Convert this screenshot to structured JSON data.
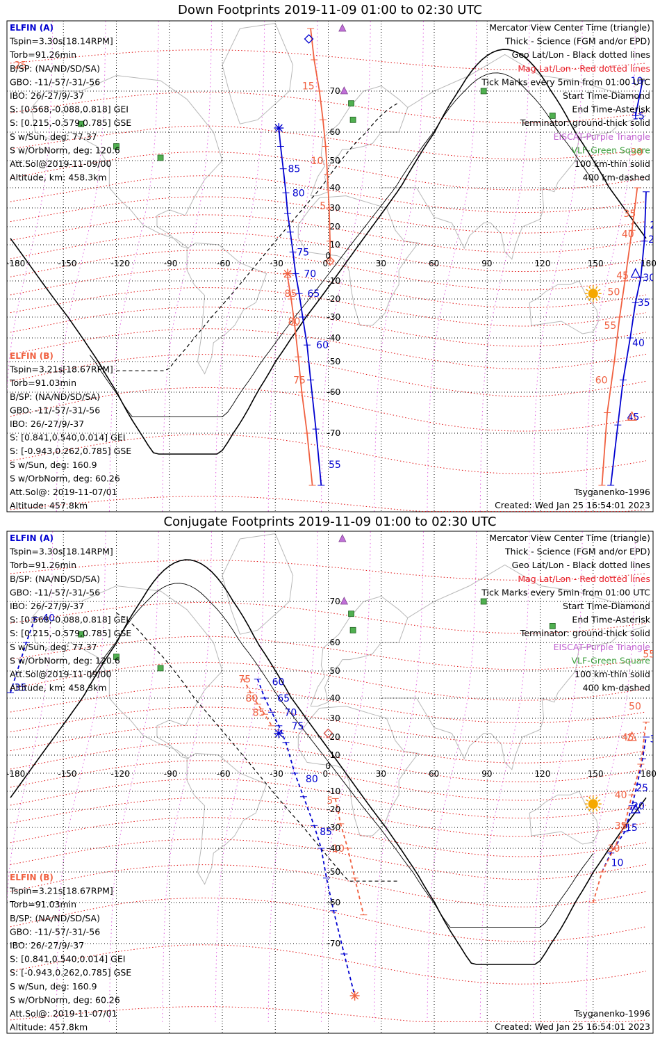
{
  "panels": [
    {
      "id": "down",
      "title": "Down Footprints 2019-11-09 01:00 to 02:30 UTC",
      "elfin_a": {
        "header": "ELFIN (A)",
        "lines": [
          "Tspin=3.30s[18.14RPM]",
          "Torb=91.26min",
          "B/SP: (NA/ND/SD/SA)",
          "GBO: -11/-57/-31/-56",
          "IBO: 26/-27/9/-37",
          "S: [0.568,-0.088,0.818] GEI",
          "S: [0.215,-0.579,0.785] GSE",
          "S w/Sun, deg: 77.37",
          "S w/OrbNorm, deg: 120.6",
          "Att.Sol@2019-11-09/00",
          "Altitude, km: 458.3km"
        ]
      },
      "elfin_b": {
        "header": "ELFIN (B)",
        "lines": [
          "Tspin=3.21s[18.67RPM]",
          "Torb=91.03min",
          "B/SP: (NA/ND/SD/SA)",
          "GBO: -11/-57/-31/-56",
          "IBO: 26/-27/9/-37",
          "S: [0.841,0.540,0.014] GEI",
          "S: [-0.943,0.262,0.785] GSE",
          "S w/Sun, deg: 160.9",
          "S w/OrbNorm, deg: 60.26",
          "Att.Sol@: 2019-11-07/01",
          "Altitude: 457.8km"
        ]
      },
      "legend": [
        {
          "text": "Mercator View Center Time (triangle)",
          "color": "#000000"
        },
        {
          "text": "Thick - Science (FGM and/or EPD)",
          "color": "#000000"
        },
        {
          "text": "Geo Lat/Lon - Black dotted lines",
          "color": "#000000"
        },
        {
          "text": "Mag Lat/Lon - Red dotted lines",
          "color": "#e8202a"
        },
        {
          "text": "Tick Marks every 5min from 01:00 UTC",
          "color": "#000000"
        },
        {
          "text": "Start Time-Diamond",
          "color": "#000000"
        },
        {
          "text": "End Time-Asterisk",
          "color": "#000000"
        },
        {
          "text": "Terminator: ground-thick solid",
          "color": "#000000"
        },
        {
          "text": "EISCAT-Purple Triangle",
          "color": "#c060d0"
        },
        {
          "text": "VLF-Green Square",
          "color": "#40a040"
        },
        {
          "text": "100 km-thin solid",
          "color": "#000000"
        },
        {
          "text": "400 km-dashed",
          "color": "#000000"
        }
      ],
      "model": "Tsyganenko-1996",
      "created": "Created: Wed Jan 25 16:54:01 2023",
      "lon_labels": [
        "-180",
        "-150",
        "-120",
        "-90",
        "-60",
        "-30",
        "0",
        "30",
        "60",
        "90",
        "120",
        "150",
        "180"
      ],
      "lat_labels": [
        "70",
        "60",
        "50",
        "40",
        "30",
        "20",
        "10",
        "0",
        "-10",
        "-20",
        "-30",
        "-40",
        "-50",
        "-60",
        "-70"
      ],
      "track_a_main": [
        {
          "lon": -28,
          "lat": 61
        },
        {
          "lon": -27,
          "lat": 55
        },
        {
          "lon": -25.5,
          "lat": 47
        },
        {
          "lon": -24,
          "lat": 37.5
        },
        {
          "lon": -23,
          "lat": 27
        },
        {
          "lon": -21.5,
          "lat": 17
        },
        {
          "lon": -20,
          "lat": 6
        },
        {
          "lon": -18.5,
          "lat": -6
        },
        {
          "lon": -16.5,
          "lat": -17
        },
        {
          "lon": -14.5,
          "lat": -30
        },
        {
          "lon": -12,
          "lat": -43
        },
        {
          "lon": -10,
          "lat": -56
        },
        {
          "lon": -7,
          "lat": -69
        },
        {
          "lon": -4,
          "lat": -80
        }
      ],
      "track_a_labels": [
        {
          "t": "85",
          "lon": -24,
          "lat": 47
        },
        {
          "t": "80",
          "lon": -21.5,
          "lat": 37.5
        },
        {
          "t": "75",
          "lon": -19,
          "lat": 6
        },
        {
          "t": "70",
          "lon": -15,
          "lat": -6
        },
        {
          "t": "65",
          "lon": -13,
          "lat": -17
        },
        {
          "t": "60",
          "lon": -8,
          "lat": -43
        },
        {
          "t": "55",
          "lon": -1,
          "lat": -76
        }
      ],
      "track_a_wrap": [
        {
          "lon": 160,
          "lat": -80
        },
        {
          "lon": 164,
          "lat": -68
        },
        {
          "lon": 167,
          "lat": -56
        },
        {
          "lon": 171,
          "lat": -40
        },
        {
          "lon": 174,
          "lat": -22
        },
        {
          "lon": 177,
          "lat": -8
        },
        {
          "lon": 179,
          "lat": 12
        },
        {
          "lon": 180,
          "lat": 38
        }
      ],
      "track_a_wrap_labels": [
        {
          "t": "45",
          "lon": 168,
          "lat": -66
        },
        {
          "t": "40",
          "lon": 171,
          "lat": -42
        },
        {
          "t": "35",
          "lon": 174,
          "lat": -22
        },
        {
          "t": "30",
          "lon": 177,
          "lat": -8
        },
        {
          "t": "25",
          "lon": 180,
          "lat": 13
        },
        {
          "t": "20",
          "lon": 181,
          "lat": 21
        }
      ],
      "track_a_ne": [
        {
          "lon": 174,
          "lat": 64
        },
        {
          "lon": 178,
          "lat": 72
        }
      ],
      "track_a_ne_labels": [
        {
          "t": "10",
          "lon": 170,
          "lat": 72
        },
        {
          "t": "15",
          "lon": 171,
          "lat": 64
        }
      ],
      "track_b_main": [
        {
          "lon": -10,
          "lat": 82
        },
        {
          "lon": -8,
          "lat": 76
        },
        {
          "lon": -5,
          "lat": 70
        },
        {
          "lon": -3,
          "lat": 63
        },
        {
          "lon": -1.5,
          "lat": 55
        },
        {
          "lon": -0.5,
          "lat": 45
        },
        {
          "lon": 0.5,
          "lat": 30
        },
        {
          "lon": 1,
          "lat": 12
        },
        {
          "lon": 1,
          "lat": 1
        }
      ],
      "track_b_labels": [
        {
          "t": "15",
          "lon": -16,
          "lat": 71
        },
        {
          "t": "10",
          "lon": -11,
          "lat": 50
        },
        {
          "t": "5",
          "lon": -6,
          "lat": 31
        }
      ],
      "track_b2": [
        {
          "lon": -23,
          "lat": -8
        },
        {
          "lon": -21,
          "lat": -20
        },
        {
          "lon": -19,
          "lat": -34
        },
        {
          "lon": -17,
          "lat": -48
        },
        {
          "lon": -15,
          "lat": -60
        },
        {
          "lon": -12,
          "lat": -70
        },
        {
          "lon": -9,
          "lat": -80
        }
      ],
      "track_b2_labels": [
        {
          "t": "85",
          "lon": -26,
          "lat": -17
        },
        {
          "t": "80",
          "lon": -24,
          "lat": -32
        },
        {
          "t": "75",
          "lon": -21,
          "lat": -56
        }
      ],
      "track_b_wrap": [
        {
          "lon": 155,
          "lat": -80
        },
        {
          "lon": 158,
          "lat": -65
        },
        {
          "lon": 162,
          "lat": -50
        },
        {
          "lon": 165,
          "lat": -30
        },
        {
          "lon": 168,
          "lat": -10
        },
        {
          "lon": 172,
          "lat": 18
        },
        {
          "lon": 175,
          "lat": 40
        }
      ],
      "track_b_wrap_labels": [
        {
          "t": "60",
          "lon": 150,
          "lat": -56
        },
        {
          "t": "55",
          "lon": 155,
          "lat": -34
        },
        {
          "t": "50",
          "lon": 157,
          "lat": -16
        },
        {
          "t": "45",
          "lon": 162,
          "lat": -7
        },
        {
          "t": "40",
          "lon": 165,
          "lat": 16
        },
        {
          "t": "35",
          "lon": 166,
          "lat": 27
        },
        {
          "t": "30",
          "lon": 170,
          "lat": 53
        },
        {
          "t": "25",
          "lon": -179,
          "lat": 75
        }
      ],
      "start_a": {
        "lon": -28,
        "lat": 61
      },
      "start_b": {
        "lon": 1,
        "lat": 1
      },
      "center_a": {
        "lon": 174,
        "lat": -6
      },
      "center_b": {
        "lon": 172,
        "lat": -66
      },
      "end_a": {
        "lon": -28,
        "lat": 61
      },
      "diamond_a": {
        "lon": -11,
        "lat": 80
      },
      "asterisk_b": {
        "lon": -23,
        "lat": -6
      }
    },
    {
      "id": "conj",
      "title": "Conjugate Footprints 2019-11-09 01:00 to 02:30 UTC",
      "elfin_a": {
        "header": "ELFIN (A)",
        "lines": [
          "Tspin=3.30s[18.14RPM]",
          "Torb=91.26min",
          "B/SP: (NA/ND/SD/SA)",
          "GBO: -11/-57/-31/-56",
          "IBO: 26/-27/9/-37",
          "S: [0.568,-0.088,0.818] GEI",
          "S: [0.215,-0.579,0.785] GSE",
          "S w/Sun, deg: 77.37",
          "S w/OrbNorm, deg: 120.6",
          "Att.Sol@2019-11-09/00",
          "Altitude, km: 458.3km"
        ]
      },
      "elfin_b": {
        "header": "ELFIN (B)",
        "lines": [
          "Tspin=3.21s[18.67RPM]",
          "Torb=91.03min",
          "B/SP: (NA/ND/SD/SA)",
          "GBO: -11/-57/-31/-56",
          "IBO: 26/-27/9/-37",
          "S: [0.841,0.540,0.014] GEI",
          "S: [-0.943,0.262,0.785] GSE",
          "S w/Sun, deg: 160.9",
          "S w/OrbNorm, deg: 60.26",
          "Att.Sol@: 2019-11-07/01",
          "Altitude: 457.8km"
        ]
      },
      "legend": [
        {
          "text": "Mercator View Center Time (triangle)",
          "color": "#000000"
        },
        {
          "text": "Thick - Science (FGM and/or EPD)",
          "color": "#000000"
        },
        {
          "text": "Geo Lat/Lon - Black dotted lines",
          "color": "#000000"
        },
        {
          "text": "Mag Lat/Lon - Red dotted lines",
          "color": "#e8202a"
        },
        {
          "text": "Tick Marks every 5min from 01:00 UTC",
          "color": "#000000"
        },
        {
          "text": "Start Time-Diamond",
          "color": "#000000"
        },
        {
          "text": "End Time-Asterisk",
          "color": "#000000"
        },
        {
          "text": "Terminator: ground-thick solid",
          "color": "#000000"
        },
        {
          "text": "EISCAT-Purple Triangle",
          "color": "#c060d0"
        },
        {
          "text": "VLF-Green Square",
          "color": "#40a040"
        },
        {
          "text": "100 km-thin solid",
          "color": "#000000"
        },
        {
          "text": "400 km-dashed",
          "color": "#000000"
        }
      ],
      "model": "Tsyganenko-1996",
      "created": "Created: Wed Jan 25 16:54:01 2023",
      "lon_labels": [
        "-180",
        "-150",
        "-120",
        "-90",
        "-60",
        "-30",
        "0",
        "30",
        "60",
        "90",
        "120",
        "150",
        "180"
      ],
      "lat_labels": [
        "70",
        "60",
        "50",
        "40",
        "30",
        "20",
        "10",
        "0",
        "-10",
        "-20",
        "-30",
        "-40",
        "-50",
        "-60",
        "-70"
      ],
      "track_a_main": [
        {
          "lon": -40,
          "lat": 47
        },
        {
          "lon": -36,
          "lat": 40
        },
        {
          "lon": -32,
          "lat": 33
        },
        {
          "lon": -28,
          "lat": 26
        },
        {
          "lon": -24,
          "lat": 17
        },
        {
          "lon": -19,
          "lat": 0
        },
        {
          "lon": -14,
          "lat": -13
        },
        {
          "lon": -8,
          "lat": -29
        },
        {
          "lon": -4,
          "lat": -40
        },
        {
          "lon": -1,
          "lat": -52
        },
        {
          "lon": 3,
          "lat": -62
        },
        {
          "lon": 9,
          "lat": -72
        },
        {
          "lon": 15,
          "lat": -80
        }
      ],
      "track_a_labels": [
        {
          "t": "60",
          "lon": -33,
          "lat": 46
        },
        {
          "t": "65",
          "lon": -30,
          "lat": 40
        },
        {
          "t": "70",
          "lon": -26,
          "lat": 33
        },
        {
          "t": "75",
          "lon": -22,
          "lat": 26
        },
        {
          "t": "80",
          "lon": -14,
          "lat": -3
        },
        {
          "t": "85",
          "lon": -6,
          "lat": -32
        }
      ],
      "track_a_wrap": [
        {
          "lon": 155,
          "lat": -50
        },
        {
          "lon": 160,
          "lat": -42
        },
        {
          "lon": 168,
          "lat": -32
        },
        {
          "lon": 172,
          "lat": -18
        },
        {
          "lon": 175,
          "lat": -6
        },
        {
          "lon": 178,
          "lat": 8
        },
        {
          "lon": 180,
          "lat": 20
        }
      ],
      "track_a_wrap_labels": [
        {
          "t": "10",
          "lon": 159,
          "lat": -46
        },
        {
          "t": "15",
          "lon": 167,
          "lat": -30
        },
        {
          "t": "20",
          "lon": 171,
          "lat": -18
        },
        {
          "t": "25",
          "lon": 173,
          "lat": -8
        },
        {
          "t": "30",
          "lon": 181,
          "lat": 19
        }
      ],
      "track_a_ne": [
        {
          "lon": -180,
          "lat": 42
        },
        {
          "lon": -171,
          "lat": 60
        },
        {
          "lon": -166,
          "lat": 66
        }
      ],
      "track_a_ne_labels": [
        {
          "t": "35",
          "lon": -179,
          "lat": 44
        },
        {
          "t": "40",
          "lon": -163,
          "lat": 66
        }
      ],
      "track_b_main": [
        {
          "lon": -48,
          "lat": 47
        },
        {
          "lon": -44,
          "lat": 42
        },
        {
          "lon": -40,
          "lat": 37
        },
        {
          "lon": -36,
          "lat": 32
        },
        {
          "lon": -32,
          "lat": 26
        }
      ],
      "track_b_labels": [
        {
          "t": "75",
          "lon": -52,
          "lat": 47
        },
        {
          "t": "80",
          "lon": -48,
          "lat": 40
        },
        {
          "t": "85",
          "lon": -44,
          "lat": 33
        }
      ],
      "track_b2": [
        {
          "lon": 4,
          "lat": -14
        },
        {
          "lon": 7,
          "lat": -28
        },
        {
          "lon": 11,
          "lat": -40
        },
        {
          "lon": 15,
          "lat": -52
        },
        {
          "lon": 20,
          "lat": -63
        }
      ],
      "track_b2_labels": [
        {
          "t": "5",
          "lon": -2,
          "lat": -15
        },
        {
          "t": "10",
          "lon": 1,
          "lat": -40
        }
      ],
      "track_b_wrap": [
        {
          "lon": 150,
          "lat": -60
        },
        {
          "lon": 155,
          "lat": -50
        },
        {
          "lon": 162,
          "lat": -40
        },
        {
          "lon": 168,
          "lat": -28
        },
        {
          "lon": 172,
          "lat": -12
        },
        {
          "lon": 177,
          "lat": 5
        },
        {
          "lon": 180,
          "lat": 28
        }
      ],
      "track_b_wrap_labels": [
        {
          "t": "30",
          "lon": 157,
          "lat": -40
        },
        {
          "t": "35",
          "lon": 161,
          "lat": -29
        },
        {
          "t": "40",
          "lon": 161,
          "lat": -12
        },
        {
          "t": "45",
          "lon": 165,
          "lat": 20
        },
        {
          "t": "50",
          "lon": 169,
          "lat": 36
        },
        {
          "t": "55",
          "lon": 177,
          "lat": 56
        }
      ],
      "start_a": {
        "lon": -28,
        "lat": 22
      },
      "start_b": {
        "lon": 0,
        "lat": 22
      },
      "center_a": {
        "lon": 174,
        "lat": -20
      },
      "center_b": {
        "lon": 172,
        "lat": 20
      },
      "end_a": {
        "lon": -28,
        "lat": 22
      },
      "diamond_a": {
        "lon": 0,
        "lat": 22
      },
      "asterisk_b": {
        "lon": 15,
        "lat": -80
      }
    }
  ],
  "eiscat": [
    {
      "lon": 8,
      "lat": 82
    },
    {
      "lon": 9,
      "lat": 70
    }
  ],
  "vlf": [
    {
      "lon": -140,
      "lat": 62
    },
    {
      "lon": -120,
      "lat": 55
    },
    {
      "lon": -95,
      "lat": 51
    },
    {
      "lon": 13,
      "lat": 67
    },
    {
      "lon": 14,
      "lat": 63
    },
    {
      "lon": 88,
      "lat": 70
    },
    {
      "lon": 127,
      "lat": 64
    }
  ],
  "sun": {
    "lon": 150,
    "lat": -17
  }
}
